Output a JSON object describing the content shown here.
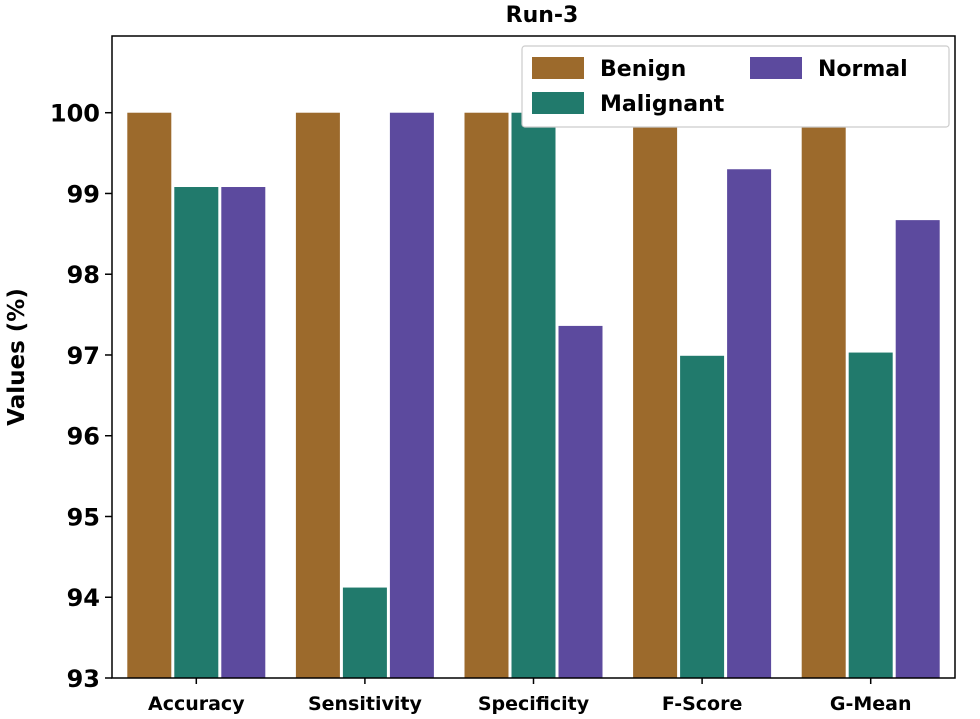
{
  "chart_data": {
    "type": "bar",
    "title": "Run-3",
    "xlabel": "",
    "ylabel": "Values (%)",
    "ylim": [
      93,
      100.95
    ],
    "yticks": [
      93,
      94,
      95,
      96,
      97,
      98,
      99,
      100
    ],
    "categories": [
      "Accuracy",
      "Sensitivity",
      "Specificity",
      "F-Score",
      "G-Mean"
    ],
    "series": [
      {
        "name": "Benign",
        "color": "#9c6a2c",
        "values": [
          100,
          100,
          100,
          100,
          100
        ]
      },
      {
        "name": "Malignant",
        "color": "#217a6c",
        "values": [
          99.08,
          94.12,
          100,
          96.99,
          97.03
        ]
      },
      {
        "name": "Normal",
        "color": "#5c4a9e",
        "values": [
          99.08,
          100,
          97.36,
          99.3,
          98.67
        ]
      }
    ],
    "legend_position": "top-right",
    "grid": false
  }
}
